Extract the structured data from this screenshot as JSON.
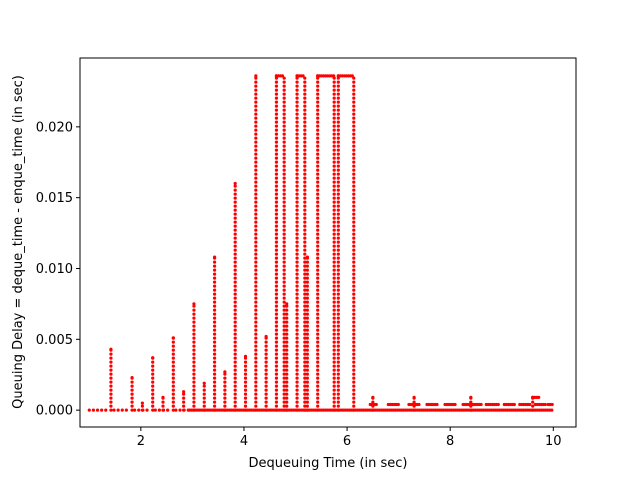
{
  "chart_data": {
    "type": "scatter",
    "title": "",
    "xlabel": "Dequeuing Time (in sec)",
    "ylabel": "Queuing Delay = deque_time - enque_time (in sec)",
    "xlim": [
      0.82,
      10.44
    ],
    "ylim": [
      -0.00119,
      0.02486
    ],
    "xticks": [
      2,
      4,
      6,
      8,
      10
    ],
    "xtick_labels": [
      "2",
      "4",
      "6",
      "8",
      "10"
    ],
    "yticks": [
      0.0,
      0.005,
      0.01,
      0.015,
      0.02
    ],
    "ytick_labels": [
      "0.000",
      "0.005",
      "0.010",
      "0.015",
      "0.020"
    ],
    "grid": false,
    "marker_color": "#ff0000",
    "series": [
      {
        "name": "queuing delay",
        "baseline": {
          "y": 0.0,
          "dense_x_range": [
            1.0,
            10.0
          ],
          "sparse_x": [
            1.0,
            1.08,
            1.16,
            1.24,
            1.32,
            1.48,
            1.56,
            1.64,
            1.72,
            1.88,
            1.96,
            2.04,
            2.12,
            2.28,
            2.36,
            2.44,
            2.52,
            2.68,
            2.76,
            2.84,
            2.92
          ]
        },
        "vertical_bursts": [
          {
            "x": 1.42,
            "max_y": 0.0043
          },
          {
            "x": 1.83,
            "max_y": 0.0023
          },
          {
            "x": 2.03,
            "max_y": 0.0005
          },
          {
            "x": 2.23,
            "max_y": 0.0037
          },
          {
            "x": 2.43,
            "max_y": 0.0009
          },
          {
            "x": 2.63,
            "max_y": 0.0051
          },
          {
            "x": 2.83,
            "max_y": 0.0013
          },
          {
            "x": 3.03,
            "max_y": 0.0075
          },
          {
            "x": 3.23,
            "max_y": 0.0019
          },
          {
            "x": 3.43,
            "max_y": 0.0108
          },
          {
            "x": 3.63,
            "max_y": 0.0027
          },
          {
            "x": 3.83,
            "max_y": 0.016
          },
          {
            "x": 4.03,
            "max_y": 0.0038
          },
          {
            "x": 4.23,
            "max_y": 0.0236
          },
          {
            "x": 4.43,
            "max_y": 0.0052
          },
          {
            "x": 4.63,
            "max_y": 0.0236
          },
          {
            "x": 4.83,
            "max_y": 0.0075
          },
          {
            "x": 5.03,
            "max_y": 0.0236
          },
          {
            "x": 5.23,
            "max_y": 0.0108
          },
          {
            "x": 5.43,
            "max_y": 0.0236
          },
          {
            "x": 5.83,
            "max_y": 0.0236
          },
          {
            "x": 6.5,
            "max_y": 0.0009
          },
          {
            "x": 7.3,
            "max_y": 0.0009
          },
          {
            "x": 8.4,
            "max_y": 0.0009
          },
          {
            "x": 9.6,
            "max_y": 0.0009
          }
        ],
        "top_plateaus": [
          {
            "x_start": 4.63,
            "x_end": 4.78,
            "y": 0.0236
          },
          {
            "x_start": 5.03,
            "x_end": 5.18,
            "y": 0.0236
          },
          {
            "x_start": 5.43,
            "x_end": 5.75,
            "y": 0.0236
          },
          {
            "x_start": 5.83,
            "x_end": 6.13,
            "y": 0.0236
          }
        ],
        "low_band": {
          "y": 0.0004,
          "x_ranges": [
            [
              6.45,
              6.6
            ],
            [
              6.8,
              7.0
            ],
            [
              7.2,
              7.4
            ],
            [
              7.55,
              7.75
            ],
            [
              7.9,
              8.1
            ],
            [
              8.25,
              8.6
            ],
            [
              8.7,
              8.95
            ],
            [
              9.05,
              9.25
            ],
            [
              9.35,
              9.55
            ],
            [
              9.65,
              9.85
            ],
            [
              9.9,
              10.0
            ]
          ]
        },
        "high_band": {
          "y": 0.0009,
          "x_ranges": [
            [
              9.6,
              9.75
            ]
          ]
        }
      }
    ]
  }
}
